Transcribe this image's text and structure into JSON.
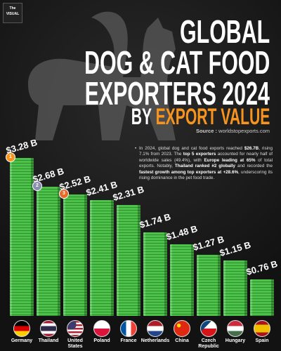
{
  "logo": "The VISUAL",
  "chart_data": {
    "type": "bar",
    "title_lines": [
      "GLOBAL",
      "DOG & CAT FOOD",
      "EXPORTERS 2024"
    ],
    "subtitle_prefix": "BY",
    "subtitle_highlight": "EXPORT VALUE",
    "source_label": "Source :",
    "source": "worldstopexports.com",
    "paragraph": [
      {
        "text": "In 2024, global dog and cat food exports reached ",
        "bold": false
      },
      {
        "text": "$26.7B",
        "bold": true
      },
      {
        "text": ", rising 7.1% from 2023. The ",
        "bold": false
      },
      {
        "text": "top 5 exporters",
        "bold": true
      },
      {
        "text": " accounted for nearly half of worldwide sales (49.4%), with ",
        "bold": false
      },
      {
        "text": "Europe leading at 65%",
        "bold": true
      },
      {
        "text": " of total exports. Notably, ",
        "bold": false
      },
      {
        "text": "Thailand ranked #2 globally",
        "bold": true
      },
      {
        "text": " and recorded the ",
        "bold": false
      },
      {
        "text": "fastest growth among top exporters at +28.6%",
        "bold": true
      },
      {
        "text": ", underscoring its rising dominance in the pet food trade.",
        "bold": false
      }
    ],
    "categories": [
      "Germany",
      "Thailand",
      "United States",
      "Poland",
      "France",
      "Netherlands",
      "China",
      "Czech Republic",
      "Hungary",
      "Spain"
    ],
    "values": [
      3.28,
      2.68,
      2.52,
      2.41,
      2.31,
      1.74,
      1.48,
      1.27,
      1.15,
      0.76
    ],
    "value_labels": [
      "$3.28 B",
      "$2.68 B",
      "$2.52 B",
      "$2.41 B",
      "$2.31 B",
      "$1.74 B",
      "$1.48 B",
      "$1.27 B",
      "$1.15 B",
      "$0.76 B"
    ],
    "ranks": [
      "1",
      "2",
      "3"
    ],
    "color": "#4cc24a",
    "highlight_color": "#f7941d"
  }
}
